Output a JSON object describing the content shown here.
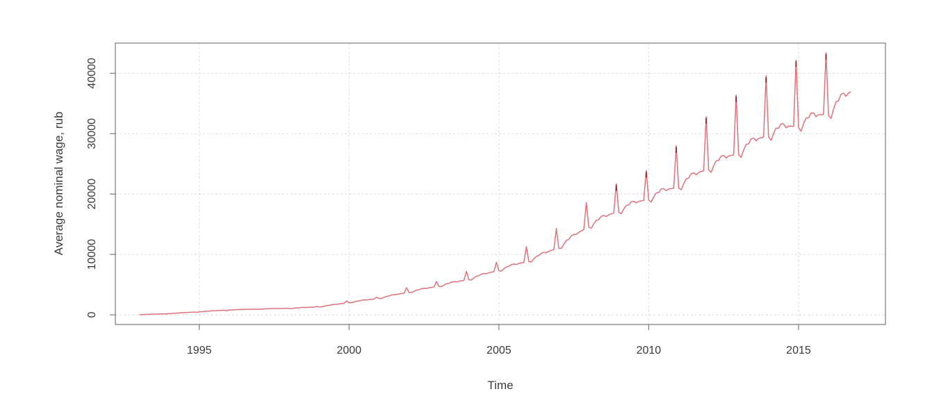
{
  "chart_data": {
    "type": "line",
    "title": "",
    "xlabel": "Time",
    "ylabel": "Average nominal wage, rub",
    "xlim": [
      1992.2,
      2017.9
    ],
    "ylim": [
      -1600,
      45000
    ],
    "x_ticks": [
      1995,
      2000,
      2005,
      2010,
      2015
    ],
    "y_ticks": [
      0,
      10000,
      20000,
      30000,
      40000
    ],
    "grid": true,
    "legend": "none",
    "line_color": "#e0707a",
    "spike_color": "#8b1a1a",
    "series": [
      {
        "name": "",
        "start": [
          1993,
          1
        ],
        "frequency": 12,
        "points": [
          [
            1993.0,
            30
          ],
          [
            1994.0,
            200
          ],
          [
            1995.0,
            500
          ],
          [
            1996.0,
            800
          ],
          [
            1997.0,
            950
          ],
          [
            1998.0,
            1050
          ],
          [
            1999.0,
            1300
          ],
          [
            2000.0,
            2000
          ],
          [
            2001.0,
            2700
          ],
          [
            2002.0,
            3700
          ],
          [
            2003.0,
            4700
          ],
          [
            2004.0,
            5800
          ],
          [
            2005.0,
            7300
          ],
          [
            2006.0,
            8800
          ],
          [
            2007.0,
            11000
          ],
          [
            2008.0,
            14500
          ],
          [
            2009.0,
            17000
          ],
          [
            2010.0,
            19000
          ],
          [
            2011.0,
            21000
          ],
          [
            2012.0,
            24000
          ],
          [
            2013.0,
            26500
          ],
          [
            2014.0,
            29500
          ],
          [
            2015.0,
            31000
          ],
          [
            2016.0,
            33000
          ],
          [
            2016.75,
            36200
          ]
        ],
        "december_peaks": {
          "1993": 150,
          "1994": 400,
          "1995": 650,
          "1996": 900,
          "1997": 1100,
          "1998": 1400,
          "1999": 2300,
          "2000": 2900,
          "2001": 4500,
          "2002": 5500,
          "2003": 7200,
          "2004": 8700,
          "2005": 11300,
          "2006": 14300,
          "2007": 18600,
          "2008": 21700,
          "2009": 23900,
          "2010": 28000,
          "2011": 32800,
          "2012": 36400,
          "2013": 39600,
          "2014": 42200,
          "2015": 43400
        }
      }
    ]
  }
}
